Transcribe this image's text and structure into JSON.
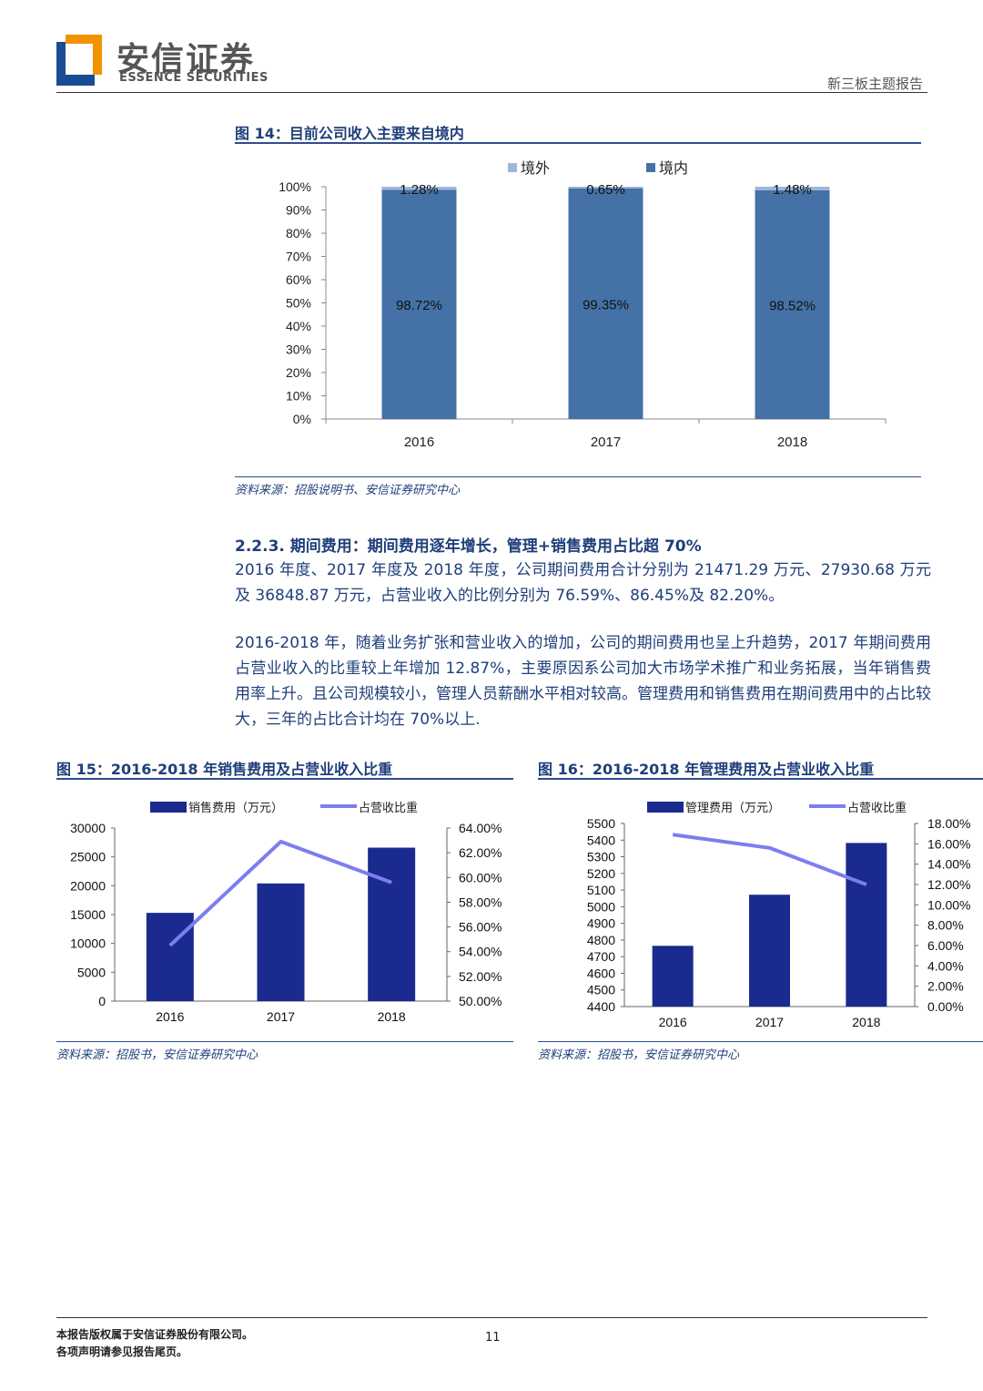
{
  "header": {
    "brand_cn": "安信证券",
    "brand_en": "ESSENCE SECURITIES",
    "report_type": "新三板主题报告",
    "logo_colors": {
      "orange": "#f39200",
      "blue": "#1a4c96"
    }
  },
  "figure14": {
    "title": "图 14：目前公司收入主要来自境内",
    "source": "资料来源：招股说明书、安信证券研究中心"
  },
  "section": {
    "heading": "2.2.3. 期间费用：期间费用逐年增长，管理+销售费用占比超 70%",
    "para1": "2016 年度、2017 年度及 2018 年度，公司期间费用合计分别为 21471.29 万元、27930.68 万元及 36848.87 万元，占营业收入的比例分别为 76.59%、86.45%及 82.20%。",
    "para2": "2016-2018 年，随着业务扩张和营业收入的增加，公司的期间费用也呈上升趋势，2017 年期间费用占营业收入的比重较上年增加 12.87%，主要原因系公司加大市场学术推广和业务拓展，当年销售费用率上升。且公司规模较小，管理人员薪酬水平相对较高。管理费用和销售费用在期间费用中的占比较大，三年的占比合计均在 70%以上."
  },
  "figure15": {
    "title": "图 15：2016-2018 年销售费用及占营业收入比重",
    "source": "资料来源：招股书，安信证券研究中心"
  },
  "figure16": {
    "title": "图 16：2016-2018 年管理费用及占营业收入比重",
    "source": "资料来源：招股书，安信证券研究中心"
  },
  "footer": {
    "copyright": "本报告版权属于安信证券股份有限公司。",
    "disclaimer": "各项声明请参见报告尾页。",
    "page_number": "11"
  },
  "chart_data": [
    {
      "id": "fig14",
      "type": "bar",
      "stacked": true,
      "categories": [
        "2016",
        "2017",
        "2018"
      ],
      "series": [
        {
          "name": "境内",
          "values": [
            98.72,
            99.35,
            98.52
          ],
          "labels": [
            "98.72%",
            "99.35%",
            "98.52%"
          ],
          "color": "#4472a6"
        },
        {
          "name": "境外",
          "values": [
            1.28,
            0.65,
            1.48
          ],
          "labels": [
            "1.28%",
            "0.65%",
            "1.48%"
          ],
          "color": "#9fb6d9"
        }
      ],
      "legend_order": [
        "境外",
        "境内"
      ],
      "legend": "top",
      "ylim": [
        0,
        100
      ],
      "yticks": [
        "0%",
        "10%",
        "20%",
        "30%",
        "40%",
        "50%",
        "60%",
        "70%",
        "80%",
        "90%",
        "100%"
      ],
      "grid": false
    },
    {
      "id": "fig15",
      "type": "bar",
      "categories": [
        "2016",
        "2017",
        "2018"
      ],
      "series": [
        {
          "name": "销售费用（万元）",
          "kind": "bar",
          "axis": "left",
          "values": [
            15300,
            20400,
            26600
          ],
          "color": "#1b2a8f"
        },
        {
          "name": "占营收比重",
          "kind": "line",
          "axis": "right",
          "values": [
            54.5,
            62.9,
            59.6
          ],
          "color": "#7b7ef0"
        }
      ],
      "legend": "top",
      "ylim_left": [
        0,
        30000
      ],
      "yticks_left": [
        "0",
        "5000",
        "10000",
        "15000",
        "20000",
        "25000",
        "30000"
      ],
      "ylim_right": [
        50,
        64
      ],
      "yticks_right": [
        "50.00%",
        "52.00%",
        "54.00%",
        "56.00%",
        "58.00%",
        "60.00%",
        "62.00%",
        "64.00%"
      ],
      "grid": false
    },
    {
      "id": "fig16",
      "type": "bar",
      "categories": [
        "2016",
        "2017",
        "2018"
      ],
      "series": [
        {
          "name": "管理费用（万元）",
          "kind": "bar",
          "axis": "left",
          "values": [
            4765,
            5072,
            5383
          ],
          "color": "#1b2a8f"
        },
        {
          "name": "占营收比重",
          "kind": "line",
          "axis": "right",
          "values": [
            16.9,
            15.6,
            12.0
          ],
          "color": "#7b7ef0"
        }
      ],
      "legend": "top",
      "ylim_left": [
        4400,
        5500
      ],
      "yticks_left": [
        "4400",
        "4500",
        "4600",
        "4700",
        "4800",
        "4900",
        "5000",
        "5100",
        "5200",
        "5300",
        "5400",
        "5500"
      ],
      "ylim_right": [
        0,
        18
      ],
      "yticks_right": [
        "0.00%",
        "2.00%",
        "4.00%",
        "6.00%",
        "8.00%",
        "10.00%",
        "12.00%",
        "14.00%",
        "16.00%",
        "18.00%"
      ],
      "grid": false
    }
  ]
}
